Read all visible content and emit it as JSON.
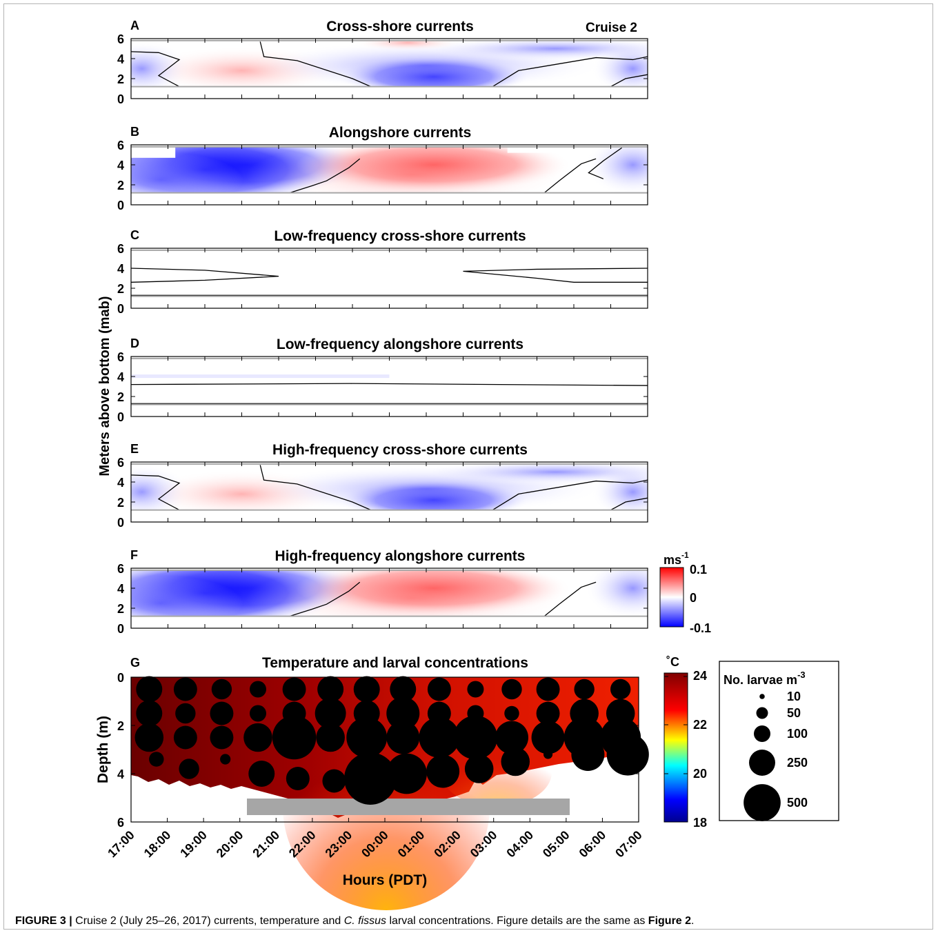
{
  "figure": {
    "ylabel_shared": "Meters above bottom (mab)",
    "cruise_label": "Cruise 2",
    "xlabel": "Hours (PDT)",
    "time_ticks": [
      "17:00",
      "18:00",
      "19:00",
      "20:00",
      "21:00",
      "22:00",
      "23:00",
      "00:00",
      "01:00",
      "02:00",
      "03:00",
      "04:00",
      "05:00",
      "06:00",
      "07:00"
    ],
    "colors": {
      "current_max": "#ff0000",
      "current_mid": "#ffffff",
      "current_min": "#0000ff",
      "contour": "#000000",
      "bounds_line": "#a6a6a6",
      "instrument_bar": "#a6a6a6",
      "larvae": "#000000"
    }
  },
  "panels": [
    {
      "letter": "A",
      "title": "Cross-shore currents"
    },
    {
      "letter": "B",
      "title": "Alongshore currents"
    },
    {
      "letter": "C",
      "title": "Low-frequency cross-shore currents"
    },
    {
      "letter": "D",
      "title": "Low-frequency alongshore currents"
    },
    {
      "letter": "E",
      "title": "High-frequency cross-shore currents"
    },
    {
      "letter": "F",
      "title": "High-frequency alongshore currents"
    },
    {
      "letter": "G",
      "title": "Temperature and larval concentrations"
    }
  ],
  "current_colorbar": {
    "unit": "ms",
    "unit_exp": "-1",
    "max": "0.1",
    "mid": "0",
    "min": "-0.1"
  },
  "temp_colorbar": {
    "unit": "˚C",
    "ticks": [
      "24",
      "22",
      "20",
      "18"
    ],
    "colors": [
      "#00008f",
      "#0000ff",
      "#00ffff",
      "#ffff00",
      "#ff0000",
      "#800000"
    ]
  },
  "larvae_legend": {
    "title": "No. larvae m",
    "title_exp": "-3",
    "entries": [
      {
        "label": "10",
        "value": 10
      },
      {
        "label": "50",
        "value": 50
      },
      {
        "label": "100",
        "value": 100
      },
      {
        "label": "250",
        "value": 250
      },
      {
        "label": "500",
        "value": 500
      }
    ]
  },
  "chart_data": [
    {
      "panel": "A",
      "type": "heatmap",
      "title": "Cross-shore currents",
      "ylabel": "Meters above bottom (mab)",
      "ylim": [
        0,
        6
      ],
      "yticks": [
        0,
        2,
        4,
        6
      ],
      "xlim": [
        "17:00",
        "07:00"
      ],
      "color_range": [
        -0.1,
        0.1
      ],
      "valid_range_mab": [
        1.2,
        5.8
      ],
      "description_values": {
        "positive_core": {
          "time": "20:00",
          "mab": 2.8,
          "value": 0.03
        },
        "negative_core": {
          "time": "01:00",
          "mab": 2.3,
          "value": -0.05
        }
      }
    },
    {
      "panel": "B",
      "type": "heatmap",
      "title": "Alongshore currents",
      "ylabel": "Meters above bottom (mab)",
      "ylim": [
        0,
        6
      ],
      "yticks": [
        0,
        2,
        4,
        6
      ],
      "xlim": [
        "17:00",
        "07:00"
      ],
      "color_range": [
        -0.1,
        0.1
      ],
      "description_values": {
        "negative_core": {
          "time": "21:00",
          "mab": 4.0,
          "value": -0.1
        },
        "positive_core": {
          "time": "02:30",
          "mab": 3.8,
          "value": 0.08
        }
      }
    },
    {
      "panel": "C",
      "type": "heatmap",
      "title": "Low-frequency cross-shore currents",
      "ylabel": "Meters above bottom (mab)",
      "ylim": [
        0,
        6
      ],
      "yticks": [
        0,
        2,
        4,
        6
      ],
      "xlim": [
        "17:00",
        "07:00"
      ],
      "color_range": [
        -0.1,
        0.1
      ]
    },
    {
      "panel": "D",
      "type": "heatmap",
      "title": "Low-frequency alongshore currents",
      "ylabel": "Meters above bottom (mab)",
      "ylim": [
        0,
        6
      ],
      "yticks": [
        0,
        2,
        4,
        6
      ],
      "xlim": [
        "17:00",
        "07:00"
      ],
      "color_range": [
        -0.1,
        0.1
      ]
    },
    {
      "panel": "E",
      "type": "heatmap",
      "title": "High-frequency cross-shore currents",
      "ylabel": "Meters above bottom (mab)",
      "ylim": [
        0,
        6
      ],
      "yticks": [
        0,
        2,
        4,
        6
      ],
      "xlim": [
        "17:00",
        "07:00"
      ],
      "color_range": [
        -0.1,
        0.1
      ]
    },
    {
      "panel": "F",
      "type": "heatmap",
      "title": "High-frequency alongshore currents",
      "ylabel": "Meters above bottom (mab)",
      "ylim": [
        0,
        6
      ],
      "yticks": [
        0,
        2,
        4,
        6
      ],
      "xlim": [
        "17:00",
        "07:00"
      ],
      "color_range": [
        -0.1,
        0.1
      ]
    },
    {
      "panel": "G",
      "type": "scatter",
      "title": "Temperature and larval concentrations",
      "ylabel": "Depth (m)",
      "xlabel": "Hours (PDT)",
      "ylim": [
        0,
        6
      ],
      "yticks": [
        0,
        2,
        4,
        6
      ],
      "xlim": [
        "17:00",
        "07:00"
      ],
      "temperature_range_c": [
        18,
        24
      ],
      "instrument_bar": {
        "x_start_h": 3.2,
        "x_end_h": 12.2,
        "depth_top": 5.1,
        "depth_bottom": 5.7
      },
      "samples_times_h": [
        0.5,
        1.5,
        2.5,
        3.5,
        4.5,
        5.5,
        6.5,
        7.5,
        8.5,
        9.5,
        10.5,
        11.5,
        12.5,
        13.5
      ],
      "depths_m": [
        0.5,
        1.5,
        2.5,
        3.5,
        4.0
      ],
      "points": [
        {
          "t": 0.5,
          "d": 0.5,
          "v": 250
        },
        {
          "t": 1.5,
          "d": 0.5,
          "v": 200
        },
        {
          "t": 2.5,
          "d": 0.5,
          "v": 150
        },
        {
          "t": 3.5,
          "d": 0.5,
          "v": 100
        },
        {
          "t": 4.5,
          "d": 0.5,
          "v": 200
        },
        {
          "t": 5.5,
          "d": 0.5,
          "v": 250
        },
        {
          "t": 6.5,
          "d": 0.5,
          "v": 250
        },
        {
          "t": 7.5,
          "d": 0.5,
          "v": 250
        },
        {
          "t": 8.5,
          "d": 0.5,
          "v": 200
        },
        {
          "t": 9.5,
          "d": 0.5,
          "v": 100
        },
        {
          "t": 10.5,
          "d": 0.5,
          "v": 150
        },
        {
          "t": 11.5,
          "d": 0.5,
          "v": 200
        },
        {
          "t": 12.5,
          "d": 0.5,
          "v": 150
        },
        {
          "t": 13.5,
          "d": 0.5,
          "v": 150
        },
        {
          "t": 0.5,
          "d": 1.5,
          "v": 250
        },
        {
          "t": 1.5,
          "d": 1.5,
          "v": 150
        },
        {
          "t": 2.5,
          "d": 1.5,
          "v": 200
        },
        {
          "t": 3.5,
          "d": 1.5,
          "v": 100
        },
        {
          "t": 4.5,
          "d": 1.5,
          "v": 200
        },
        {
          "t": 5.5,
          "d": 1.5,
          "v": 350
        },
        {
          "t": 6.5,
          "d": 1.5,
          "v": 250
        },
        {
          "t": 7.5,
          "d": 1.5,
          "v": 400
        },
        {
          "t": 8.5,
          "d": 1.5,
          "v": 200
        },
        {
          "t": 9.5,
          "d": 1.5,
          "v": 100
        },
        {
          "t": 10.5,
          "d": 1.5,
          "v": 80
        },
        {
          "t": 11.5,
          "d": 1.5,
          "v": 200
        },
        {
          "t": 12.5,
          "d": 1.5,
          "v": 300
        },
        {
          "t": 13.5,
          "d": 1.5,
          "v": 300
        },
        {
          "t": 0.5,
          "d": 2.5,
          "v": 300
        },
        {
          "t": 1.5,
          "d": 2.5,
          "v": 200
        },
        {
          "t": 2.5,
          "d": 2.5,
          "v": 200
        },
        {
          "t": 3.5,
          "d": 2.5,
          "v": 300
        },
        {
          "t": 4.5,
          "d": 2.5,
          "v": 700
        },
        {
          "t": 5.5,
          "d": 2.5,
          "v": 300
        },
        {
          "t": 6.5,
          "d": 2.5,
          "v": 600
        },
        {
          "t": 7.5,
          "d": 2.5,
          "v": 400
        },
        {
          "t": 8.5,
          "d": 2.5,
          "v": 600
        },
        {
          "t": 9.5,
          "d": 2.5,
          "v": 700
        },
        {
          "t": 10.5,
          "d": 2.5,
          "v": 400
        },
        {
          "t": 11.5,
          "d": 2.5,
          "v": 400
        },
        {
          "t": 12.5,
          "d": 2.5,
          "v": 600
        },
        {
          "t": 13.5,
          "d": 2.5,
          "v": 600
        },
        {
          "t": 0.7,
          "d": 3.4,
          "v": 80
        },
        {
          "t": 2.6,
          "d": 3.4,
          "v": 40
        },
        {
          "t": 11.5,
          "d": 3.2,
          "v": 30
        },
        {
          "t": 12.6,
          "d": 3.2,
          "v": 400
        },
        {
          "t": 13.7,
          "d": 3.2,
          "v": 650
        },
        {
          "t": 1.6,
          "d": 3.8,
          "v": 150
        },
        {
          "t": 3.6,
          "d": 4.0,
          "v": 250
        },
        {
          "t": 4.6,
          "d": 4.2,
          "v": 200
        },
        {
          "t": 5.6,
          "d": 4.3,
          "v": 200
        },
        {
          "t": 6.6,
          "d": 4.2,
          "v": 1000
        },
        {
          "t": 7.6,
          "d": 4.0,
          "v": 600
        },
        {
          "t": 8.6,
          "d": 3.9,
          "v": 400
        },
        {
          "t": 9.6,
          "d": 3.8,
          "v": 300
        },
        {
          "t": 10.6,
          "d": 3.5,
          "v": 300
        }
      ]
    }
  ],
  "caption": {
    "label": "FIGURE 3 |",
    "text_1": " Cruise 2 (July 25–26, 2017) currents, temperature and ",
    "species": "C. fissus",
    "text_2": " larval concentrations. Figure details are the same as ",
    "ref": "Figure 2",
    "text_3": "."
  }
}
